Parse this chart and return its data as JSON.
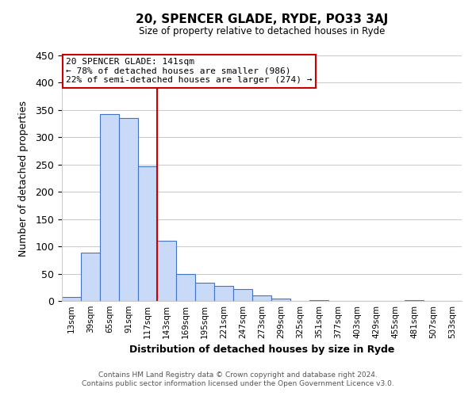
{
  "title": "20, SPENCER GLADE, RYDE, PO33 3AJ",
  "subtitle": "Size of property relative to detached houses in Ryde",
  "xlabel": "Distribution of detached houses by size in Ryde",
  "ylabel": "Number of detached properties",
  "bar_labels": [
    "13sqm",
    "39sqm",
    "65sqm",
    "91sqm",
    "117sqm",
    "143sqm",
    "169sqm",
    "195sqm",
    "221sqm",
    "247sqm",
    "273sqm",
    "299sqm",
    "325sqm",
    "351sqm",
    "377sqm",
    "403sqm",
    "429sqm",
    "455sqm",
    "481sqm",
    "507sqm",
    "533sqm"
  ],
  "bar_values": [
    7,
    89,
    343,
    335,
    247,
    111,
    50,
    33,
    27,
    22,
    10,
    5,
    0,
    2,
    0,
    0,
    0,
    0,
    1,
    0,
    0
  ],
  "bar_color": "#c9daf8",
  "bar_edge_color": "#4472c4",
  "vline_x": 5,
  "vline_color": "#cc0000",
  "annotation_title": "20 SPENCER GLADE: 141sqm",
  "annotation_line1": "← 78% of detached houses are smaller (986)",
  "annotation_line2": "22% of semi-detached houses are larger (274) →",
  "annotation_box_color": "#ffffff",
  "annotation_box_edge": "#cc0000",
  "ylim": [
    0,
    450
  ],
  "yticks": [
    0,
    50,
    100,
    150,
    200,
    250,
    300,
    350,
    400,
    450
  ],
  "footer_line1": "Contains HM Land Registry data © Crown copyright and database right 2024.",
  "footer_line2": "Contains public sector information licensed under the Open Government Licence v3.0.",
  "bg_color": "#ffffff",
  "grid_color": "#cccccc"
}
